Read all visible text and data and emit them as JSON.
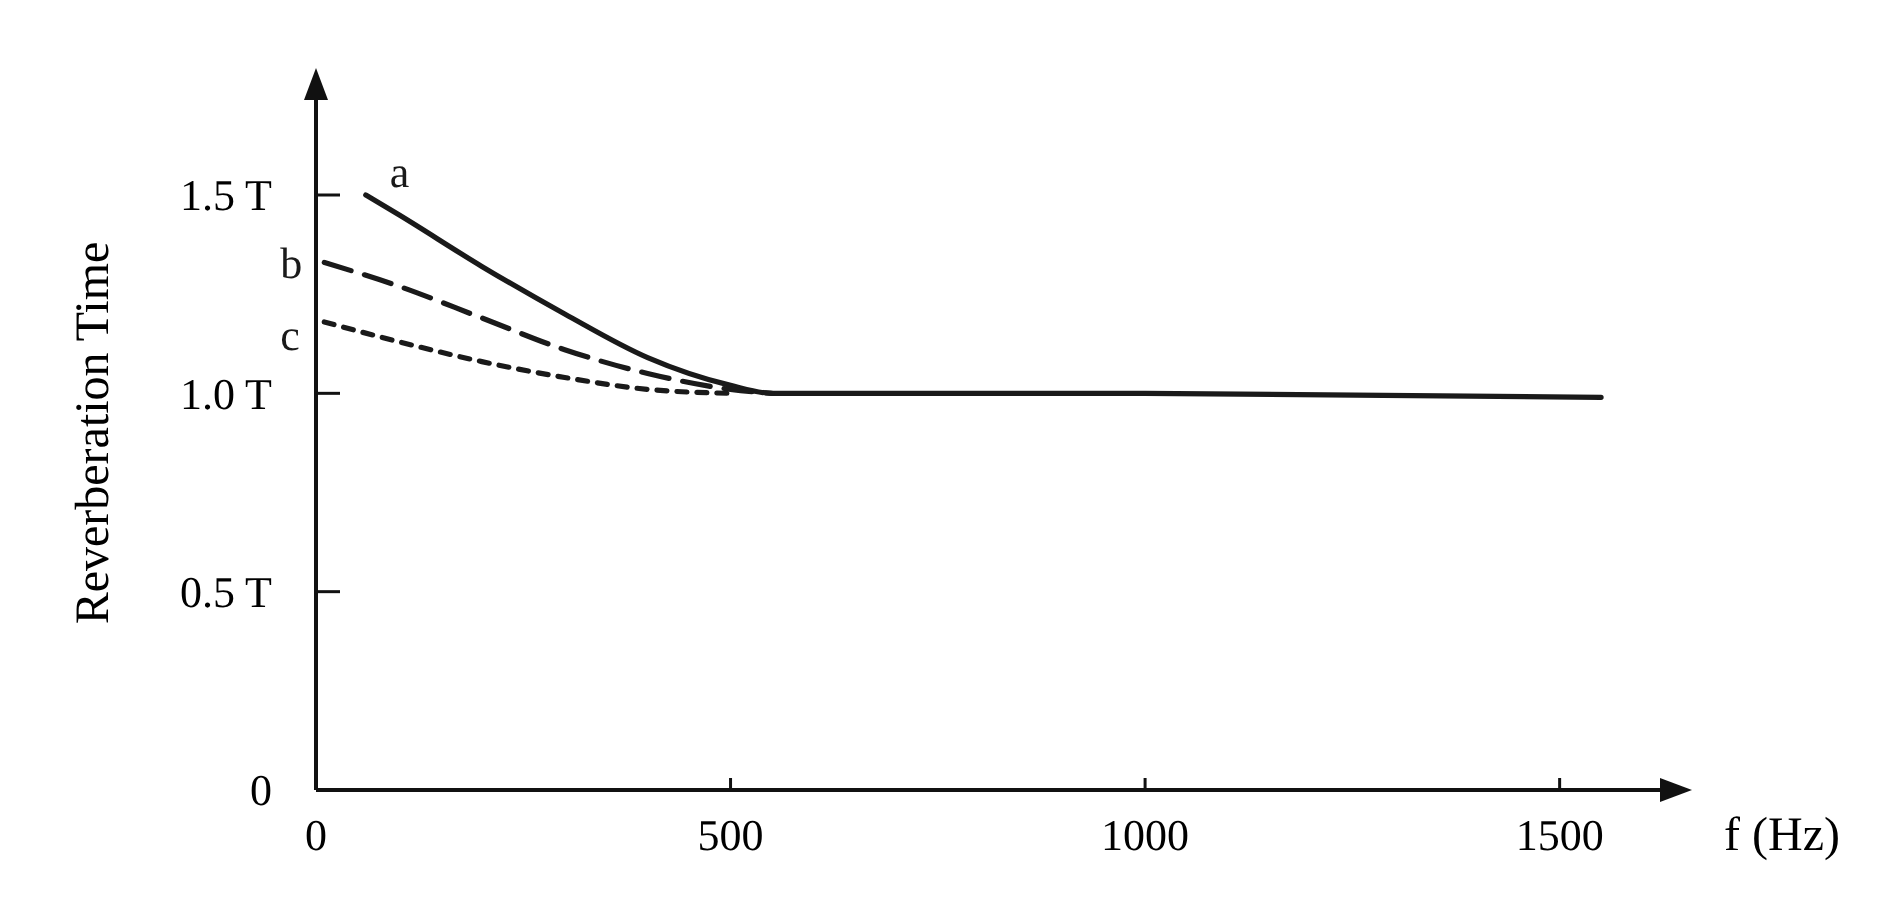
{
  "chart_data": {
    "type": "line",
    "ylabel": "Reverberation Time",
    "xlabel": "f (Hz)",
    "xlim": [
      0,
      1650
    ],
    "xticks": [
      0,
      500,
      1000,
      1500
    ],
    "ylim": [
      0,
      1.8
    ],
    "yticks": [
      0,
      {
        "value": 0.5,
        "label": "0.5 T"
      },
      {
        "value": 1,
        "label": "1.0 T"
      },
      {
        "value": 1.5,
        "label": "1.5 T"
      }
    ],
    "grid": false,
    "marker": "none",
    "series": [
      {
        "name": "a",
        "color": "#1a1a1a",
        "line_style": "solid",
        "x": [
          60,
          100,
          200,
          300,
          400,
          500,
          550,
          1000,
          1550
        ],
        "values": [
          1.5,
          1.45,
          1.32,
          1.2,
          1.09,
          1.02,
          1.0,
          1.0,
          0.99
        ]
      },
      {
        "name": "b",
        "color": "#1a1a1a",
        "line_style": "dashed",
        "x": [
          10,
          100,
          200,
          300,
          400,
          500,
          550
        ],
        "values": [
          1.33,
          1.27,
          1.19,
          1.11,
          1.05,
          1.01,
          1.0
        ]
      },
      {
        "name": "c",
        "color": "#1a1a1a",
        "line_style": "dotted",
        "x": [
          10,
          100,
          200,
          300,
          400,
          500
        ],
        "values": [
          1.18,
          1.13,
          1.08,
          1.04,
          1.01,
          1.0
        ]
      }
    ]
  }
}
